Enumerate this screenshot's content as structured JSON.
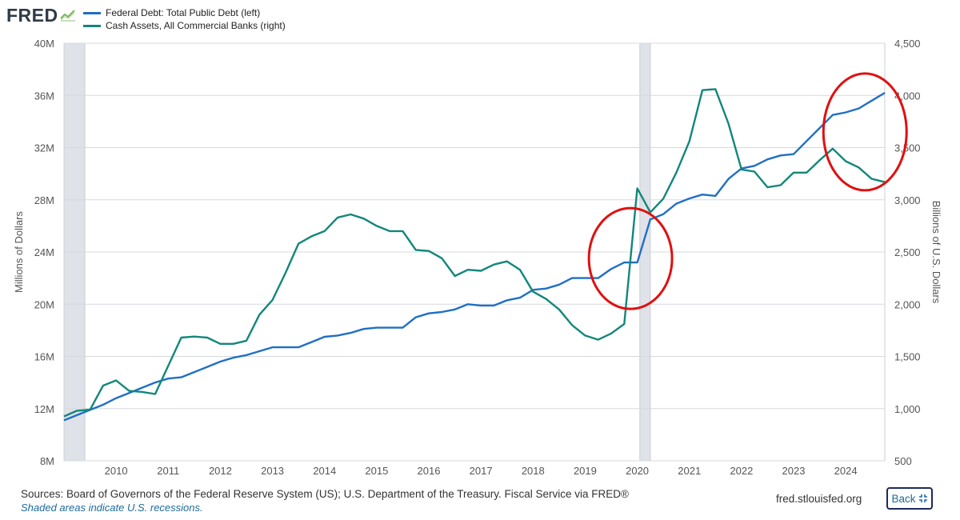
{
  "header": {
    "logo_text": "FRED",
    "logo_icon": "trend-line-icon"
  },
  "legend": {
    "items": [
      {
        "label": "Federal Debt: Total Public Debt (left)",
        "color": "#1f6fc5"
      },
      {
        "label": "Cash Assets, All Commercial Banks (right)",
        "color": "#12877a"
      }
    ]
  },
  "footer": {
    "sources": "Sources: Board of Governors of the Federal Reserve System (US); U.S. Department of the Treasury. Fiscal Service via FRED®",
    "note": "Shaded areas indicate U.S. recessions.",
    "url": "fred.stlouisfed.org",
    "back_label": "Back",
    "back_icon": "collapse-arrows-icon"
  },
  "chart_data": {
    "type": "line",
    "title": "",
    "xlabel": "",
    "ylabel": "Millions of Dollars",
    "ylabel_right": "Billions of U.S. Dollars",
    "xlim": [
      2009.0,
      2024.75
    ],
    "ylim": [
      8,
      40
    ],
    "ylim_right": [
      500,
      4500
    ],
    "x_ticks": [
      "2010",
      "2011",
      "2012",
      "2013",
      "2014",
      "2015",
      "2016",
      "2017",
      "2018",
      "2019",
      "2020",
      "2021",
      "2022",
      "2023",
      "2024"
    ],
    "y_ticks_left": [
      "8M",
      "12M",
      "16M",
      "20M",
      "24M",
      "28M",
      "32M",
      "36M",
      "40M"
    ],
    "y_ticks_right": [
      "500",
      "1,000",
      "1,500",
      "2,000",
      "2,500",
      "3,000",
      "3,500",
      "4,000",
      "4,500"
    ],
    "grid": true,
    "recessions": [
      [
        2009.0,
        2009.4
      ],
      [
        2020.05,
        2020.25
      ]
    ],
    "annotations": [
      {
        "type": "ellipse",
        "color": "#e01010",
        "center": [
          2019.87,
          2350000.0
        ],
        "note": "circle around 2020 cash spike"
      },
      {
        "type": "ellipse",
        "color": "#e01010",
        "center": [
          2024.35,
          3320000.0
        ],
        "note": "circle around 2024 divergence"
      }
    ],
    "series": [
      {
        "name": "Federal Debt: Total Public Debt (left)",
        "axis": "left",
        "color": "#1f6fc5",
        "x": [
          2009.0,
          2009.25,
          2009.5,
          2009.75,
          2010.0,
          2010.25,
          2010.5,
          2010.75,
          2011.0,
          2011.25,
          2011.5,
          2011.75,
          2012.0,
          2012.25,
          2012.5,
          2012.75,
          2013.0,
          2013.25,
          2013.5,
          2013.75,
          2014.0,
          2014.25,
          2014.5,
          2014.75,
          2015.0,
          2015.25,
          2015.5,
          2015.75,
          2016.0,
          2016.25,
          2016.5,
          2016.75,
          2017.0,
          2017.25,
          2017.5,
          2017.75,
          2018.0,
          2018.25,
          2018.5,
          2018.75,
          2019.0,
          2019.25,
          2019.5,
          2019.75,
          2020.0,
          2020.25,
          2020.5,
          2020.75,
          2021.0,
          2021.25,
          2021.5,
          2021.75,
          2022.0,
          2022.25,
          2022.5,
          2022.75,
          2023.0,
          2023.25,
          2023.5,
          2023.75,
          2024.0,
          2024.25,
          2024.5,
          2024.75
        ],
        "values": [
          11.1,
          11.5,
          11.9,
          12.3,
          12.8,
          13.2,
          13.6,
          14.0,
          14.3,
          14.4,
          14.8,
          15.2,
          15.6,
          15.9,
          16.1,
          16.4,
          16.7,
          16.7,
          16.7,
          17.1,
          17.5,
          17.6,
          17.8,
          18.1,
          18.2,
          18.2,
          18.2,
          19.0,
          19.3,
          19.4,
          19.6,
          20.0,
          19.9,
          19.9,
          20.3,
          20.5,
          21.1,
          21.2,
          21.5,
          22.0,
          22.0,
          22.0,
          22.7,
          23.2,
          23.2,
          26.5,
          26.9,
          27.7,
          28.1,
          28.4,
          28.3,
          29.6,
          30.4,
          30.6,
          31.1,
          31.4,
          31.5,
          32.5,
          33.5,
          34.5,
          34.7,
          35.0,
          35.6,
          36.2
        ]
      },
      {
        "name": "Cash Assets, All Commercial Banks (right)",
        "axis": "right",
        "color": "#12877a",
        "x": [
          2009.0,
          2009.25,
          2009.5,
          2009.75,
          2010.0,
          2010.25,
          2010.5,
          2010.75,
          2011.0,
          2011.25,
          2011.5,
          2011.75,
          2012.0,
          2012.25,
          2012.5,
          2012.75,
          2013.0,
          2013.25,
          2013.5,
          2013.75,
          2014.0,
          2014.25,
          2014.5,
          2014.75,
          2015.0,
          2015.25,
          2015.5,
          2015.75,
          2016.0,
          2016.25,
          2016.5,
          2016.75,
          2017.0,
          2017.25,
          2017.5,
          2017.75,
          2018.0,
          2018.25,
          2018.5,
          2018.75,
          2019.0,
          2019.25,
          2019.5,
          2019.75,
          2020.0,
          2020.25,
          2020.5,
          2020.75,
          2021.0,
          2021.25,
          2021.5,
          2021.75,
          2022.0,
          2022.25,
          2022.5,
          2022.75,
          2023.0,
          2023.25,
          2023.5,
          2023.75,
          2024.0,
          2024.25,
          2024.5,
          2024.75
        ],
        "values": [
          925,
          980,
          990,
          1220,
          1270,
          1170,
          1160,
          1140,
          1410,
          1680,
          1690,
          1680,
          1620,
          1620,
          1650,
          1900,
          2040,
          2300,
          2580,
          2650,
          2700,
          2830,
          2860,
          2820,
          2750,
          2700,
          2700,
          2520,
          2510,
          2440,
          2270,
          2330,
          2320,
          2380,
          2410,
          2330,
          2120,
          2050,
          1950,
          1800,
          1700,
          1660,
          1720,
          1810,
          3110,
          2880,
          3010,
          3260,
          3560,
          4050,
          4060,
          3730,
          3290,
          3270,
          3120,
          3140,
          3260,
          3260,
          3380,
          3490,
          3370,
          3310,
          3200,
          3170
        ]
      }
    ]
  }
}
